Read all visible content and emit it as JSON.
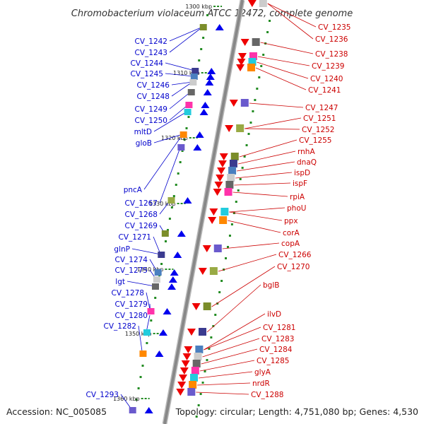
{
  "title": "Chromobacterium violaceum ATCC 12472, complete genome",
  "footer": {
    "accession": "Accession: NC_005085",
    "summary": "Topology: circular; Length: 4,751,080 bp; Genes: 4,530"
  },
  "colors": {
    "left_label": "#0000cc",
    "right_label": "#cc0000",
    "backbone": "#888888",
    "tick": "#228b22"
  },
  "kbp_marks": [
    "1300 kbp",
    "1310 kbp",
    "1320 kbp",
    "1330 kbp",
    "1340 kbp",
    "1350 kbp",
    "1360 kbp"
  ],
  "left_genes": [
    "CV_1242",
    "CV_1243",
    "CV_1244",
    "CV_1245",
    "CV_1246",
    "CV_1248",
    "CV_1249",
    "CV_1250",
    "mltD",
    "gloB",
    "pncA",
    "CV_1267",
    "CV_1268",
    "CV_1269",
    "CV_1271",
    "glnP",
    "CV_1274",
    "CV_1275",
    "lgt",
    "CV_1278",
    "CV_1279",
    "CV_1280",
    "CV_1282",
    "CV_1293"
  ],
  "right_genes": [
    "CV_1235",
    "CV_1236",
    "CV_1238",
    "CV_1239",
    "CV_1240",
    "CV_1241",
    "CV_1247",
    "CV_1251",
    "CV_1252",
    "CV_1255",
    "rnhA",
    "dnaQ",
    "ispD",
    "ispF",
    "rpiA",
    "phoU",
    "ppx",
    "corA",
    "copA",
    "CV_1266",
    "CV_1270",
    "bglB",
    "ilvD",
    "CV_1281",
    "CV_1283",
    "CV_1284",
    "CV_1285",
    "glyA",
    "nrdR",
    "CV_1288"
  ]
}
